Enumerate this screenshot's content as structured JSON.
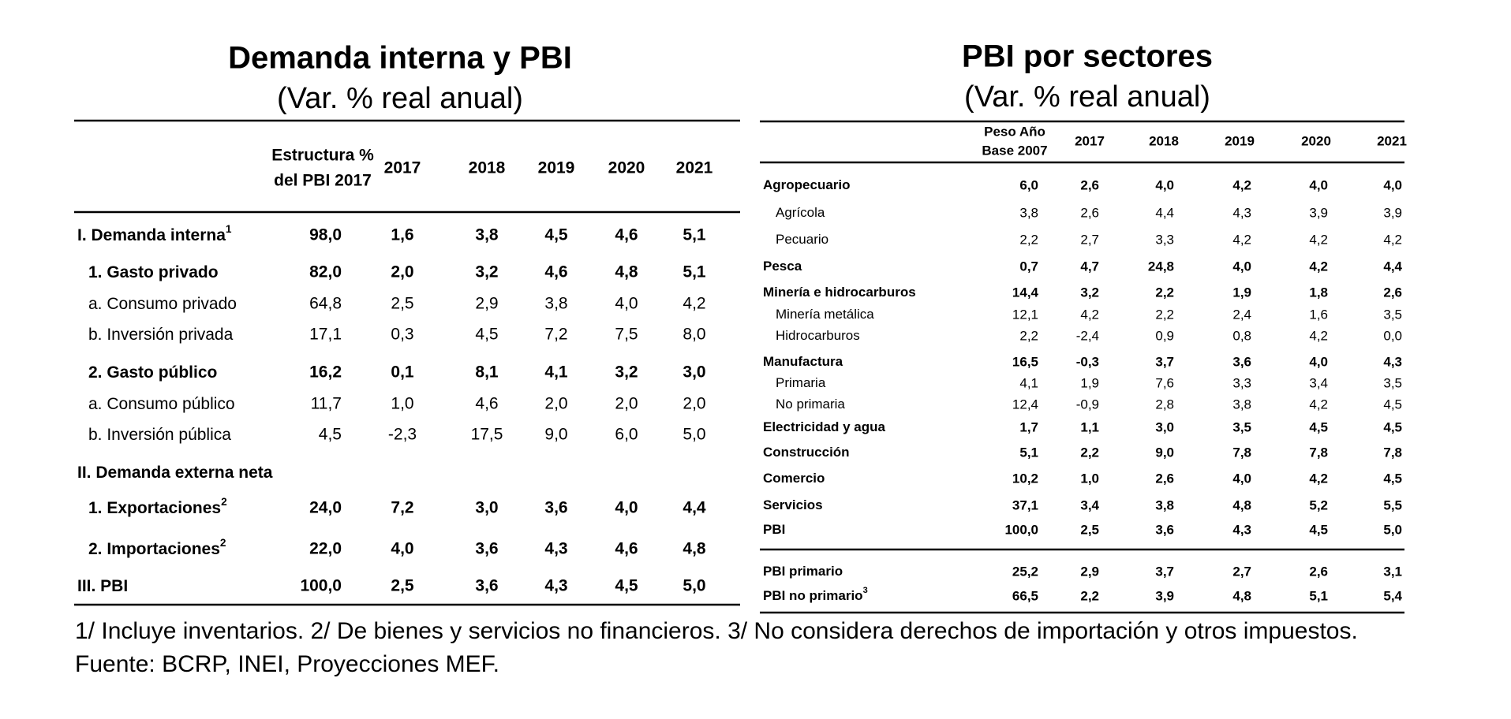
{
  "left": {
    "title": "Demanda interna y PBI",
    "subtitle": "(Var. % real anual)",
    "columns": [
      [
        "Estructura %",
        "del PBI 2017"
      ],
      "2017",
      "2018",
      "2019",
      "2020",
      "2021"
    ],
    "rows": [
      {
        "label": "I. Demanda interna",
        "sup": "1",
        "values": [
          "98,0",
          "1,6",
          "3,8",
          "4,5",
          "4,6",
          "5,1"
        ]
      },
      {
        "label": "1. Gasto privado",
        "values": [
          "82,0",
          "2,0",
          "3,2",
          "4,6",
          "4,8",
          "5,1"
        ]
      },
      {
        "label": "a. Consumo privado",
        "values": [
          "64,8",
          "2,5",
          "2,9",
          "3,8",
          "4,0",
          "4,2"
        ]
      },
      {
        "label": "b.  Inversión privada",
        "values": [
          "17,1",
          "0,3",
          "4,5",
          "7,2",
          "7,5",
          "8,0"
        ]
      },
      {
        "label": "2. Gasto público",
        "values": [
          "16,2",
          "0,1",
          "8,1",
          "4,1",
          "3,2",
          "3,0"
        ]
      },
      {
        "label": "a. Consumo público",
        "values": [
          "11,7",
          "1,0",
          "4,6",
          "2,0",
          "2,0",
          "2,0"
        ]
      },
      {
        "label": "b. Inversión pública",
        "values": [
          "4,5",
          "-2,3",
          "17,5",
          "9,0",
          "6,0",
          "5,0"
        ]
      },
      {
        "label": "II. Demanda externa neta",
        "values": []
      },
      {
        "label": "1. Exportaciones",
        "sup": "2",
        "values": [
          "24,0",
          "7,2",
          "3,0",
          "3,6",
          "4,0",
          "4,4"
        ]
      },
      {
        "label": "2. Importaciones",
        "sup": "2",
        "values": [
          "22,0",
          "4,0",
          "3,6",
          "4,3",
          "4,6",
          "4,8"
        ]
      },
      {
        "label": "III. PBI",
        "values": [
          "100,0",
          "2,5",
          "3,6",
          "4,3",
          "4,5",
          "5,0"
        ]
      }
    ]
  },
  "right": {
    "title": "PBI por sectores",
    "subtitle": "(Var. % real anual)",
    "columns": [
      [
        "Peso Año",
        "Base 2007"
      ],
      "2017",
      "2018",
      "2019",
      "2020",
      "2021"
    ],
    "rows": [
      {
        "label": "Agropecuario",
        "values": [
          "6,0",
          "2,6",
          "4,0",
          "4,2",
          "4,0",
          "4,0"
        ]
      },
      {
        "label": "Agrícola",
        "values": [
          "3,8",
          "2,6",
          "4,4",
          "4,3",
          "3,9",
          "3,9"
        ]
      },
      {
        "label": "Pecuario",
        "values": [
          "2,2",
          "2,7",
          "3,3",
          "4,2",
          "4,2",
          "4,2"
        ]
      },
      {
        "label": "Pesca",
        "values": [
          "0,7",
          "4,7",
          "24,8",
          "4,0",
          "4,2",
          "4,4"
        ]
      },
      {
        "label": "Minería e hidrocarburos",
        "values": [
          "14,4",
          "3,2",
          "2,2",
          "1,9",
          "1,8",
          "2,6"
        ]
      },
      {
        "label": "Minería metálica",
        "values": [
          "12,1",
          "4,2",
          "2,2",
          "2,4",
          "1,6",
          "3,5"
        ]
      },
      {
        "label": "Hidrocarburos",
        "values": [
          "2,2",
          "-2,4",
          "0,9",
          "0,8",
          "4,2",
          "0,0"
        ]
      },
      {
        "label": "Manufactura",
        "values": [
          "16,5",
          "-0,3",
          "3,7",
          "3,6",
          "4,0",
          "4,3"
        ]
      },
      {
        "label": "Primaria",
        "values": [
          "4,1",
          "1,9",
          "7,6",
          "3,3",
          "3,4",
          "3,5"
        ]
      },
      {
        "label": "No primaria",
        "values": [
          "12,4",
          "-0,9",
          "2,8",
          "3,8",
          "4,2",
          "4,5"
        ]
      },
      {
        "label": "Electricidad y agua",
        "values": [
          "1,7",
          "1,1",
          "3,0",
          "3,5",
          "4,5",
          "4,5"
        ]
      },
      {
        "label": "Construcción",
        "values": [
          "5,1",
          "2,2",
          "9,0",
          "7,8",
          "7,8",
          "7,8"
        ]
      },
      {
        "label": "Comercio",
        "values": [
          "10,2",
          "1,0",
          "2,6",
          "4,0",
          "4,2",
          "4,5"
        ]
      },
      {
        "label": "Servicios",
        "values": [
          "37,1",
          "3,4",
          "3,8",
          "4,8",
          "5,2",
          "5,5"
        ]
      },
      {
        "label": "PBI",
        "values": [
          "100,0",
          "2,5",
          "3,6",
          "4,3",
          "4,5",
          "5,0"
        ]
      },
      {
        "label": "PBI primario",
        "values": [
          "25,2",
          "2,9",
          "3,7",
          "2,7",
          "2,6",
          "3,1"
        ]
      },
      {
        "label": "PBI no primario",
        "sup": "3",
        "values": [
          "66,5",
          "2,2",
          "3,9",
          "4,8",
          "5,1",
          "5,4"
        ]
      }
    ]
  },
  "footnotes": [
    "1/ Incluye inventarios. 2/ De bienes y servicios no financieros. 3/ No considera derechos de importación y otros impuestos.",
    "Fuente: BCRP, INEI, Proyecciones MEF."
  ]
}
